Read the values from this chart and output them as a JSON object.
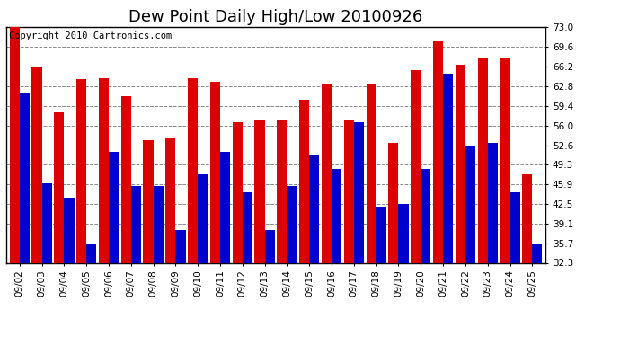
{
  "title": "Dew Point Daily High/Low 20100926",
  "copyright": "Copyright 2010 Cartronics.com",
  "dates": [
    "09/02",
    "09/03",
    "09/04",
    "09/05",
    "09/06",
    "09/07",
    "09/08",
    "09/09",
    "09/10",
    "09/11",
    "09/12",
    "09/13",
    "09/14",
    "09/15",
    "09/16",
    "09/17",
    "09/18",
    "09/19",
    "09/20",
    "09/21",
    "09/22",
    "09/23",
    "09/24",
    "09/25"
  ],
  "highs": [
    73.0,
    66.2,
    58.2,
    64.0,
    64.2,
    61.0,
    53.5,
    53.8,
    64.2,
    63.5,
    56.5,
    57.0,
    57.0,
    60.5,
    63.0,
    57.0,
    63.0,
    53.0,
    65.5,
    70.5,
    66.5,
    67.5,
    67.5,
    47.5
  ],
  "lows": [
    61.5,
    46.0,
    43.5,
    35.7,
    51.5,
    45.5,
    45.5,
    38.0,
    47.5,
    51.5,
    44.5,
    38.0,
    45.5,
    51.0,
    48.5,
    56.5,
    42.0,
    42.5,
    48.5,
    65.0,
    52.5,
    53.0,
    44.5,
    35.7
  ],
  "high_color": "#dd0000",
  "low_color": "#0000cc",
  "background_color": "#ffffff",
  "plot_background": "#ffffff",
  "grid_color": "#888888",
  "ymin": 32.3,
  "ymax": 73.0,
  "yticks": [
    32.3,
    35.7,
    39.1,
    42.5,
    45.9,
    49.3,
    52.6,
    56.0,
    59.4,
    62.8,
    66.2,
    69.6,
    73.0
  ],
  "bar_width": 0.45,
  "title_fontsize": 13,
  "tick_fontsize": 7.5,
  "copyright_fontsize": 7.5
}
